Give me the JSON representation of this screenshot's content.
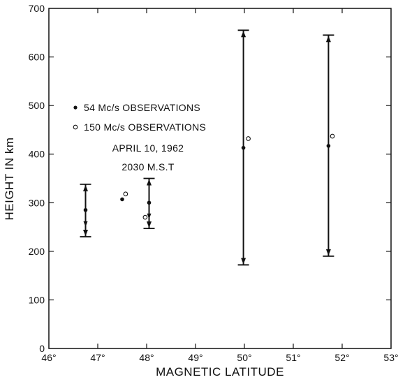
{
  "chart_data": {
    "type": "scatter",
    "xlabel": "MAGNETIC LATITUDE",
    "ylabel": "HEIGHT IN km",
    "xlim": [
      46,
      53
    ],
    "ylim": [
      0,
      700
    ],
    "x_ticks": [
      46,
      47,
      48,
      49,
      50,
      51,
      52,
      53
    ],
    "x_tick_labels": [
      "46°",
      "47°",
      "48°",
      "49°",
      "50°",
      "51°",
      "52°",
      "53°"
    ],
    "y_ticks": [
      0,
      100,
      200,
      300,
      400,
      500,
      600,
      700
    ],
    "y_tick_labels": [
      "0",
      "100",
      "200",
      "300",
      "400",
      "500",
      "600",
      "700"
    ],
    "grid": false,
    "legend_position": "upper-left",
    "legend": [
      {
        "marker": "filled-dot",
        "label": "54 Mc/s OBSERVATIONS"
      },
      {
        "marker": "open-circle",
        "label": "150 Mc/s OBSERVATIONS"
      }
    ],
    "annotation": [
      "APRIL 10, 1962",
      "2030 M.S.T"
    ],
    "series": [
      {
        "name": "54 Mc/s OBSERVATIONS",
        "marker": "filled-dot",
        "points": [
          {
            "x": 46.75,
            "y": 285,
            "low": 230,
            "high": 338
          },
          {
            "x": 47.5,
            "y": 307
          },
          {
            "x": 48.05,
            "y": 300,
            "low": 247,
            "high": 350
          },
          {
            "x": 49.98,
            "y": 413,
            "low": 172,
            "high": 655
          },
          {
            "x": 51.72,
            "y": 417,
            "low": 190,
            "high": 645
          }
        ]
      },
      {
        "name": "150 Mc/s OBSERVATIONS",
        "marker": "open-circle",
        "points": [
          {
            "x": 47.57,
            "y": 318
          },
          {
            "x": 47.97,
            "y": 270
          },
          {
            "x": 50.08,
            "y": 432
          },
          {
            "x": 51.8,
            "y": 437
          }
        ]
      }
    ]
  }
}
